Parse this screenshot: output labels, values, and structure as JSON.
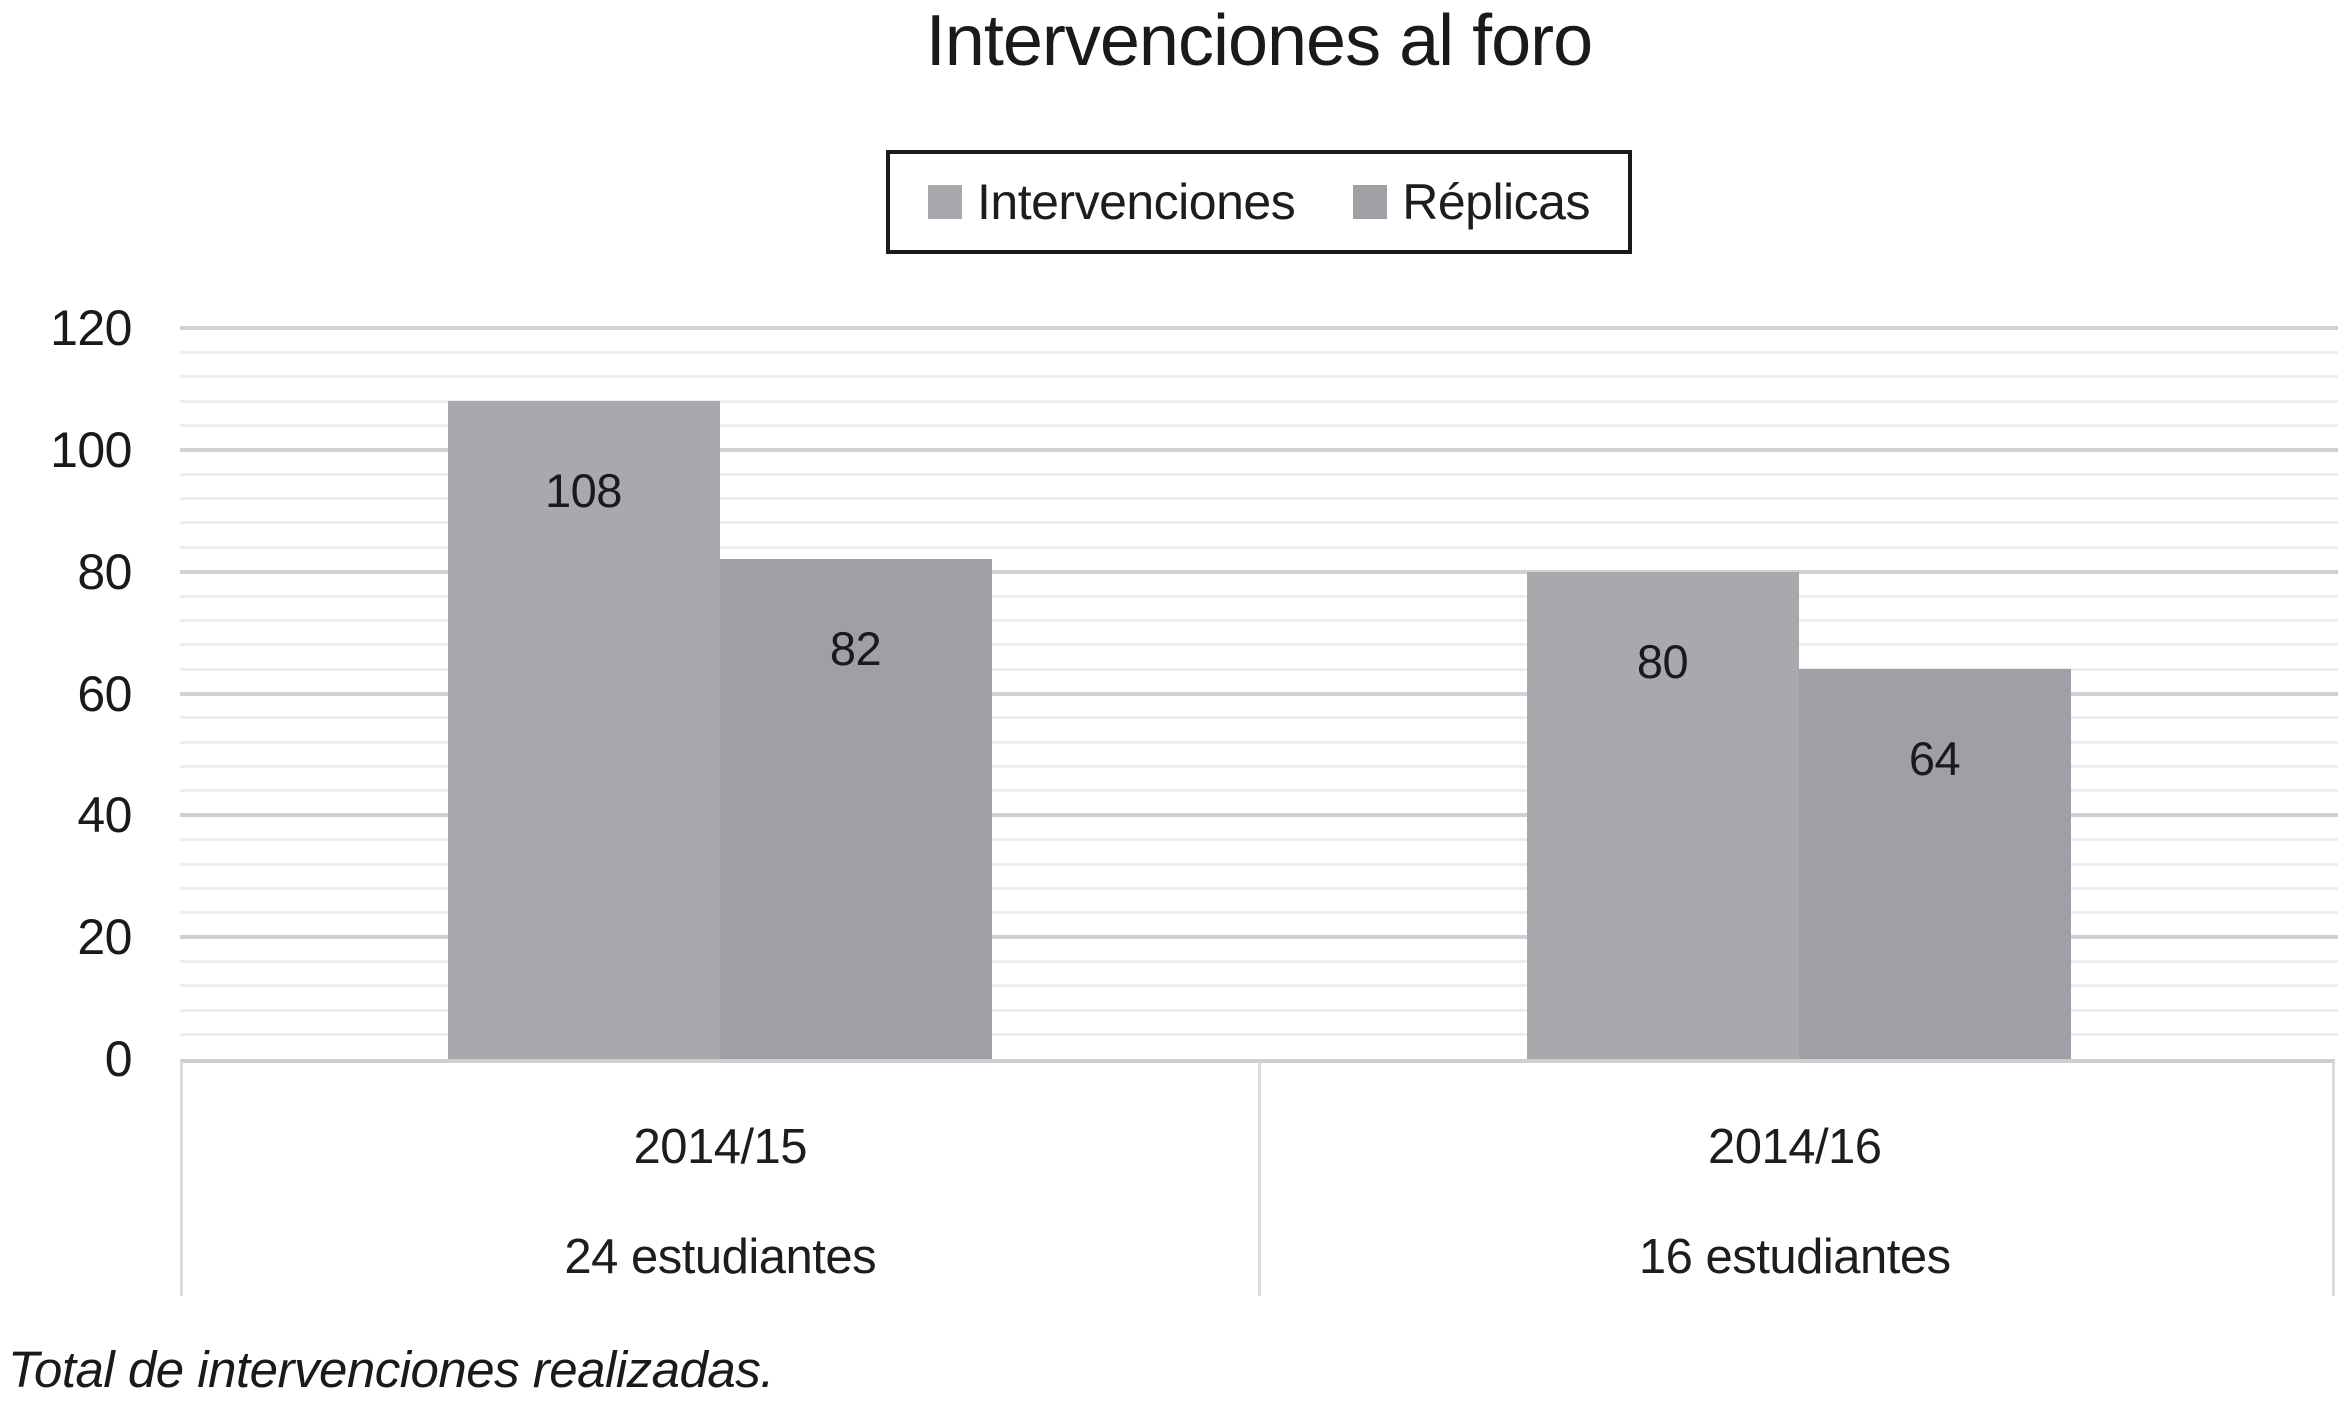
{
  "chart_data": {
    "type": "bar",
    "title": "Intervenciones al foro",
    "caption": "Total de intervenciones realizadas.",
    "categories": [
      {
        "label": "2014/15",
        "sublabel": "24 estudiantes"
      },
      {
        "label": "2014/16",
        "sublabel": "16 estudiantes"
      }
    ],
    "series": [
      {
        "name": "Intervenciones",
        "color": "#a7a9ac",
        "values": [
          108,
          80
        ]
      },
      {
        "name": "Réplicas",
        "color": "#9ea0a5",
        "values": [
          82,
          64
        ]
      }
    ],
    "ylim": [
      0,
      120
    ],
    "y_ticks": [
      0,
      20,
      40,
      60,
      80,
      100,
      120
    ],
    "y_major_step": 20,
    "y_minor_step": 4,
    "grid": true,
    "legend_position": "top",
    "data_labels": true,
    "xlabel": "",
    "ylabel": ""
  },
  "colors": {
    "background": "#ffffff",
    "text": "#1a1a1c",
    "legend_border": "#1b1b1d",
    "major_grid": "#ced2d6",
    "minor_grid": "#ebedee",
    "axis_box_border": "#d9dbdd",
    "axis_baseline": "#ccd0d3"
  }
}
